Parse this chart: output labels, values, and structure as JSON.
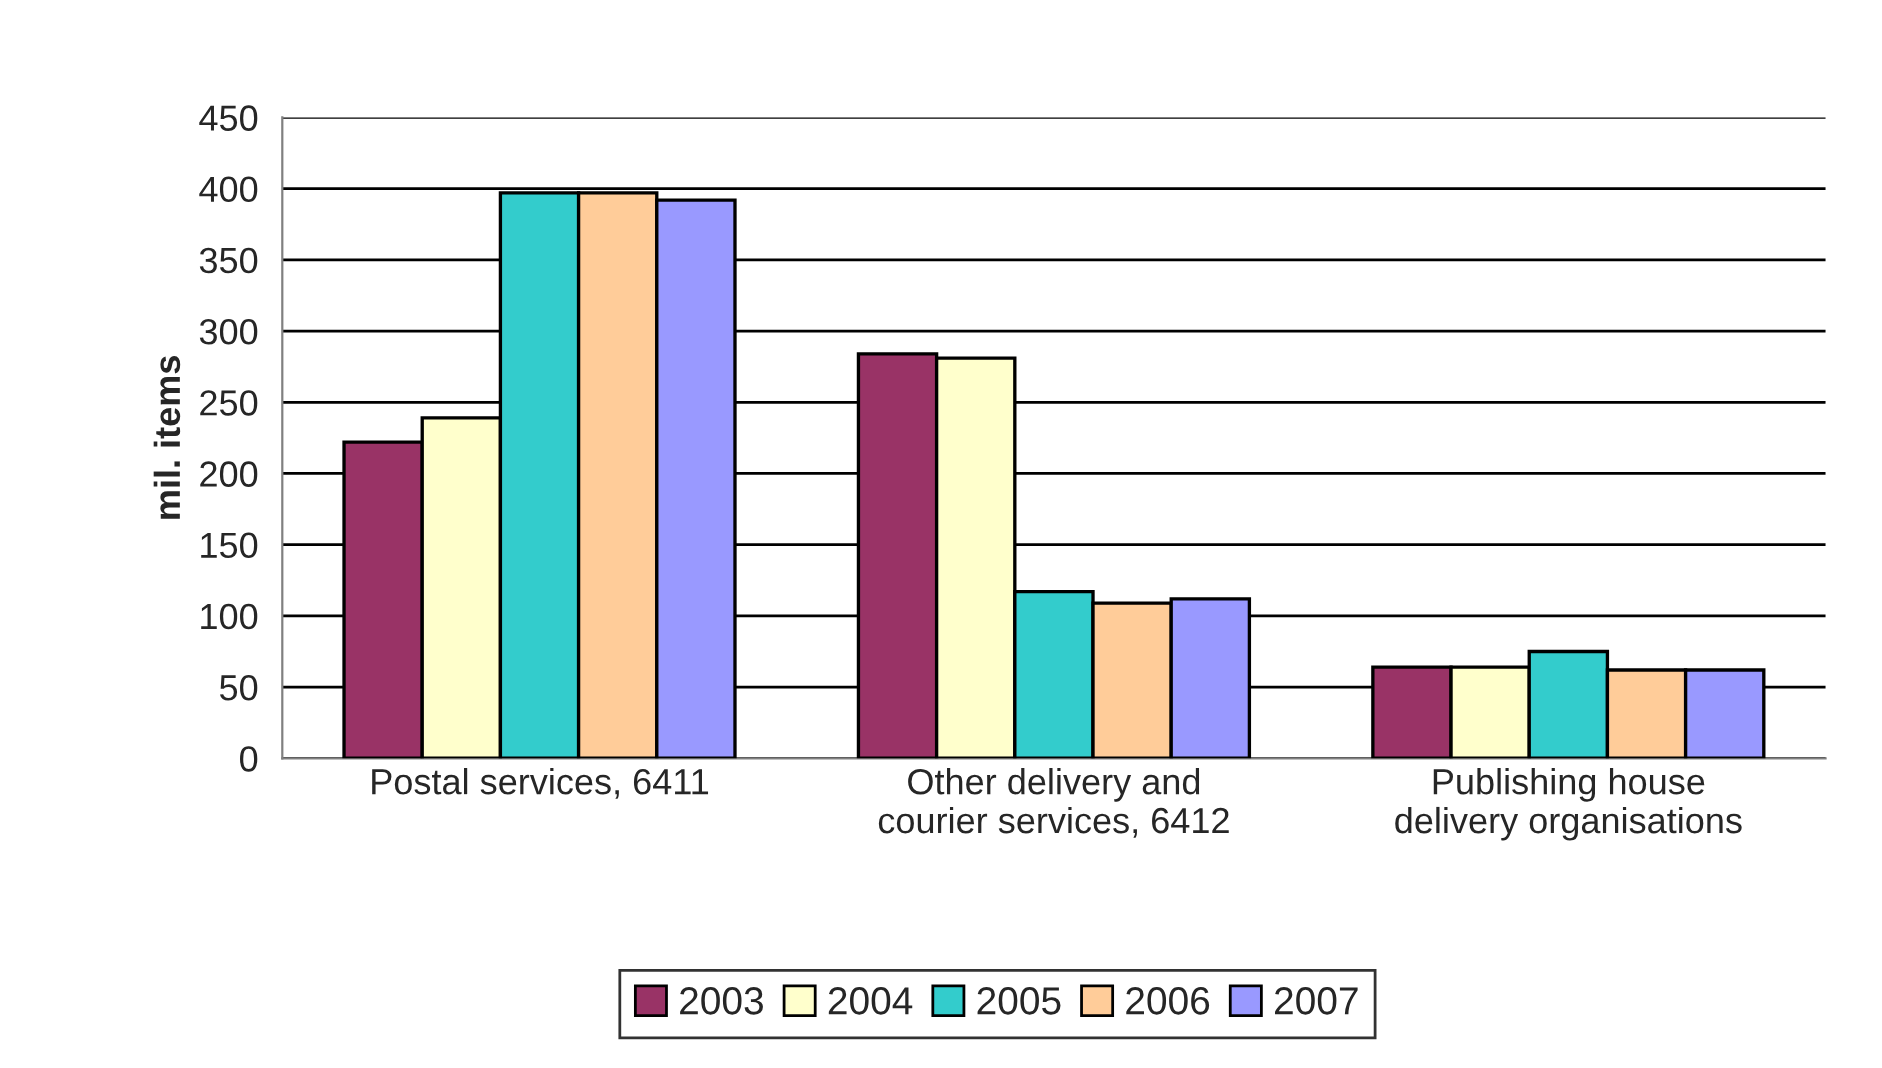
{
  "chart_data": {
    "type": "bar",
    "ylabel": "mil. items",
    "categories": [
      "Postal services, 6411",
      "Other delivery and\ncourier services, 6412",
      "Publishing house\ndelivery organisations"
    ],
    "series": [
      {
        "name": "2003",
        "color": "#993366",
        "values": [
          222,
          284,
          64
        ]
      },
      {
        "name": "2004",
        "color": "#ffffcc",
        "values": [
          239,
          281,
          64
        ]
      },
      {
        "name": "2005",
        "color": "#33cccc",
        "values": [
          397,
          117,
          75
        ]
      },
      {
        "name": "2006",
        "color": "#ffcc99",
        "values": [
          397,
          109,
          62
        ]
      },
      {
        "name": "2007",
        "color": "#9999ff",
        "values": [
          392,
          112,
          62
        ]
      }
    ],
    "ylim": [
      0,
      450
    ],
    "yticks": [
      0,
      50,
      100,
      150,
      200,
      250,
      300,
      350,
      400,
      450
    ],
    "grid": "y",
    "legend": "bottom"
  }
}
